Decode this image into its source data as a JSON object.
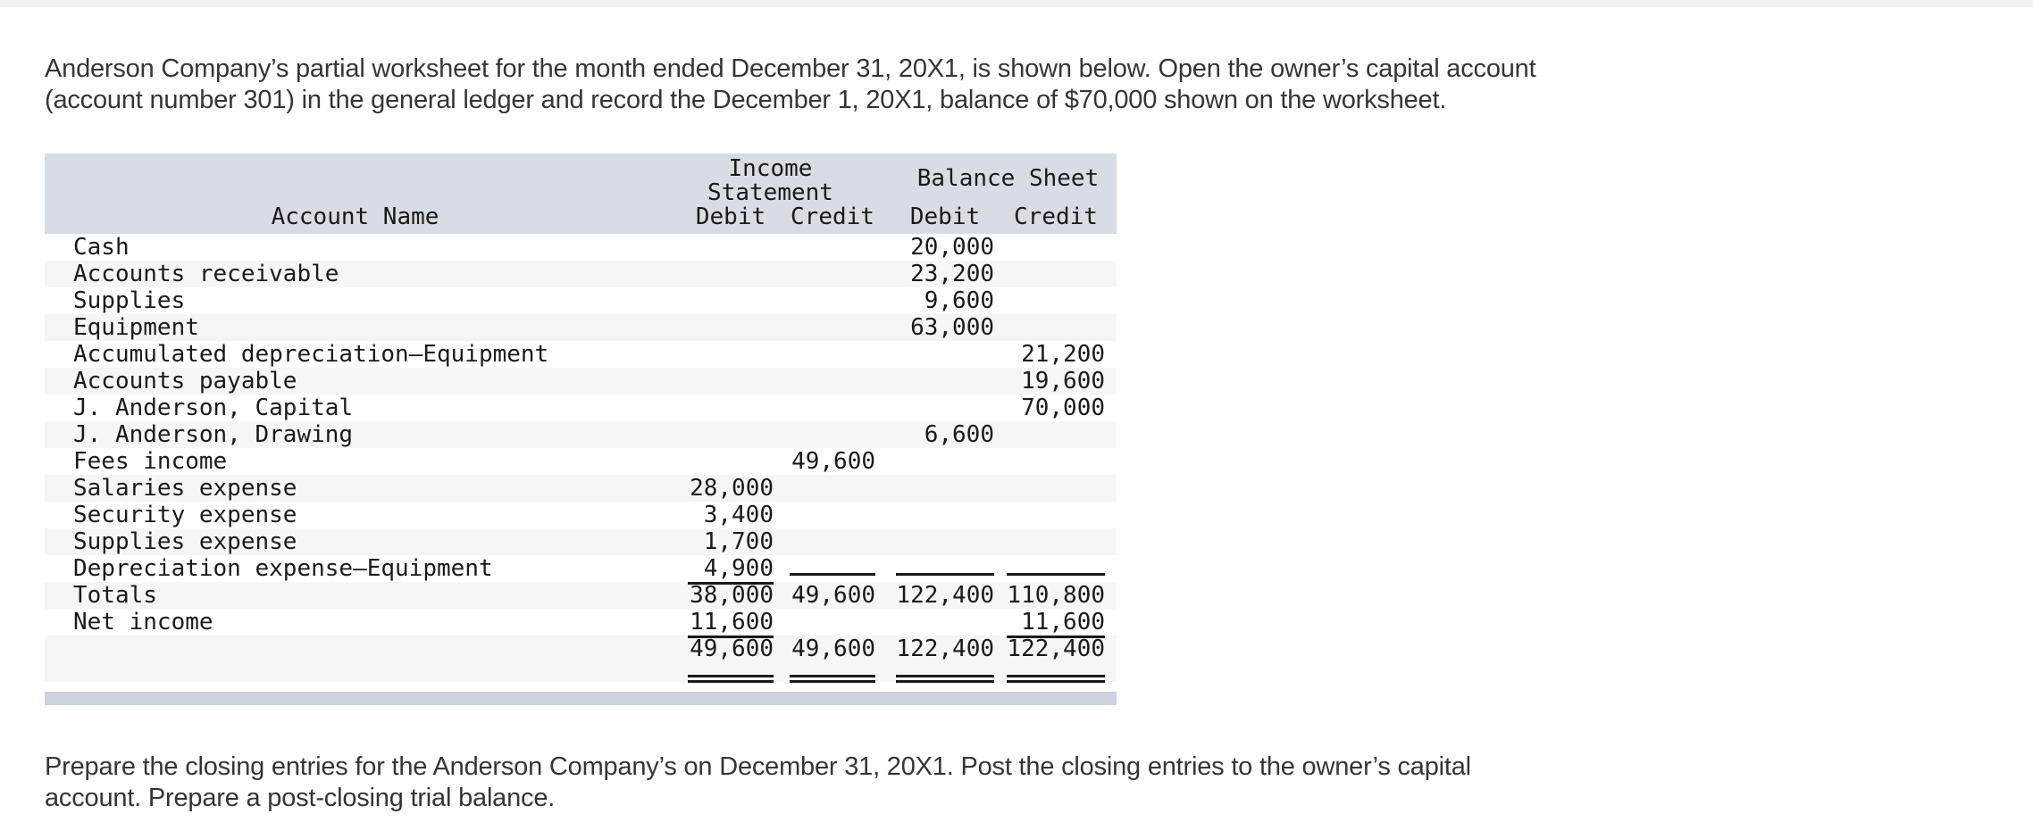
{
  "colors": {
    "worksheet_header_bg": "#d8dce3",
    "row_shade": "#f6f6f7",
    "footer_bar": "#ccd3df",
    "top_bar": "#f0f1f2",
    "text": "#333639",
    "table_text": "#1a1a1a"
  },
  "intro": {
    "lines": [
      "Anderson Company’s partial worksheet for the month ended December 31, 20X1, is shown below. Open the owner’s capital account",
      "(account number 301) in the general ledger and record the December 1, 20X1, balance of $70,000 shown on the worksheet."
    ]
  },
  "outro": {
    "lines": [
      "Prepare the closing entries for the Anderson Company’s on December 31, 20X1. Post the closing entries to the owner’s capital",
      "account. Prepare a post-closing trial balance."
    ]
  },
  "worksheet": {
    "header": {
      "account_name": "Account Name",
      "income_statement_line1": "Income",
      "income_statement_line2": "Statement",
      "balance_sheet": "Balance Sheet",
      "debit": "Debit",
      "credit": "Credit"
    },
    "rows": [
      {
        "name": "Cash",
        "isd": "",
        "isc": "",
        "bsd": "20,000",
        "bsc": "",
        "shade": false,
        "ul": []
      },
      {
        "name": "Accounts receivable",
        "isd": "",
        "isc": "",
        "bsd": "23,200",
        "bsc": "",
        "shade": true,
        "ul": []
      },
      {
        "name": "Supplies",
        "isd": "",
        "isc": "",
        "bsd": "9,600",
        "bsc": "",
        "shade": false,
        "ul": []
      },
      {
        "name": "Equipment",
        "isd": "",
        "isc": "",
        "bsd": "63,000",
        "bsc": "",
        "shade": true,
        "ul": []
      },
      {
        "name": "Accumulated depreciation—Equipment",
        "isd": "",
        "isc": "",
        "bsd": "",
        "bsc": "21,200",
        "shade": false,
        "ul": []
      },
      {
        "name": "Accounts payable",
        "isd": "",
        "isc": "",
        "bsd": "",
        "bsc": "19,600",
        "shade": true,
        "ul": []
      },
      {
        "name": "J. Anderson, Capital",
        "isd": "",
        "isc": "",
        "bsd": "",
        "bsc": "70,000",
        "shade": false,
        "ul": []
      },
      {
        "name": "J. Anderson, Drawing",
        "isd": "",
        "isc": "",
        "bsd": "6,600",
        "bsc": "",
        "shade": true,
        "ul": []
      },
      {
        "name": "Fees income",
        "isd": "",
        "isc": "49,600",
        "bsd": "",
        "bsc": "",
        "shade": false,
        "ul": []
      },
      {
        "name": "Salaries expense",
        "isd": "28,000",
        "isc": "",
        "bsd": "",
        "bsc": "",
        "shade": true,
        "ul": []
      },
      {
        "name": "Security expense",
        "isd": "3,400",
        "isc": "",
        "bsd": "",
        "bsc": "",
        "shade": false,
        "ul": []
      },
      {
        "name": "Supplies expense",
        "isd": "1,700",
        "isc": "",
        "bsd": "",
        "bsc": "",
        "shade": true,
        "ul": []
      },
      {
        "name": "Depreciation expense—Equipment",
        "isd": "4,900",
        "isc": "",
        "bsd": "",
        "bsc": "",
        "shade": false,
        "ul": [
          "isd",
          "isc",
          "bsd",
          "bsc"
        ]
      },
      {
        "name": "Totals",
        "isd": "38,000",
        "isc": "49,600",
        "bsd": "122,400",
        "bsc": "110,800",
        "shade": true,
        "ul": []
      },
      {
        "name": "Net income",
        "isd": "11,600",
        "isc": "",
        "bsd": "",
        "bsc": "11,600",
        "shade": false,
        "ul": [
          "isd",
          "bsc"
        ]
      },
      {
        "name": "",
        "isd": "49,600",
        "isc": "49,600",
        "bsd": "122,400",
        "bsc": "122,400",
        "shade": true,
        "ul": []
      }
    ]
  }
}
